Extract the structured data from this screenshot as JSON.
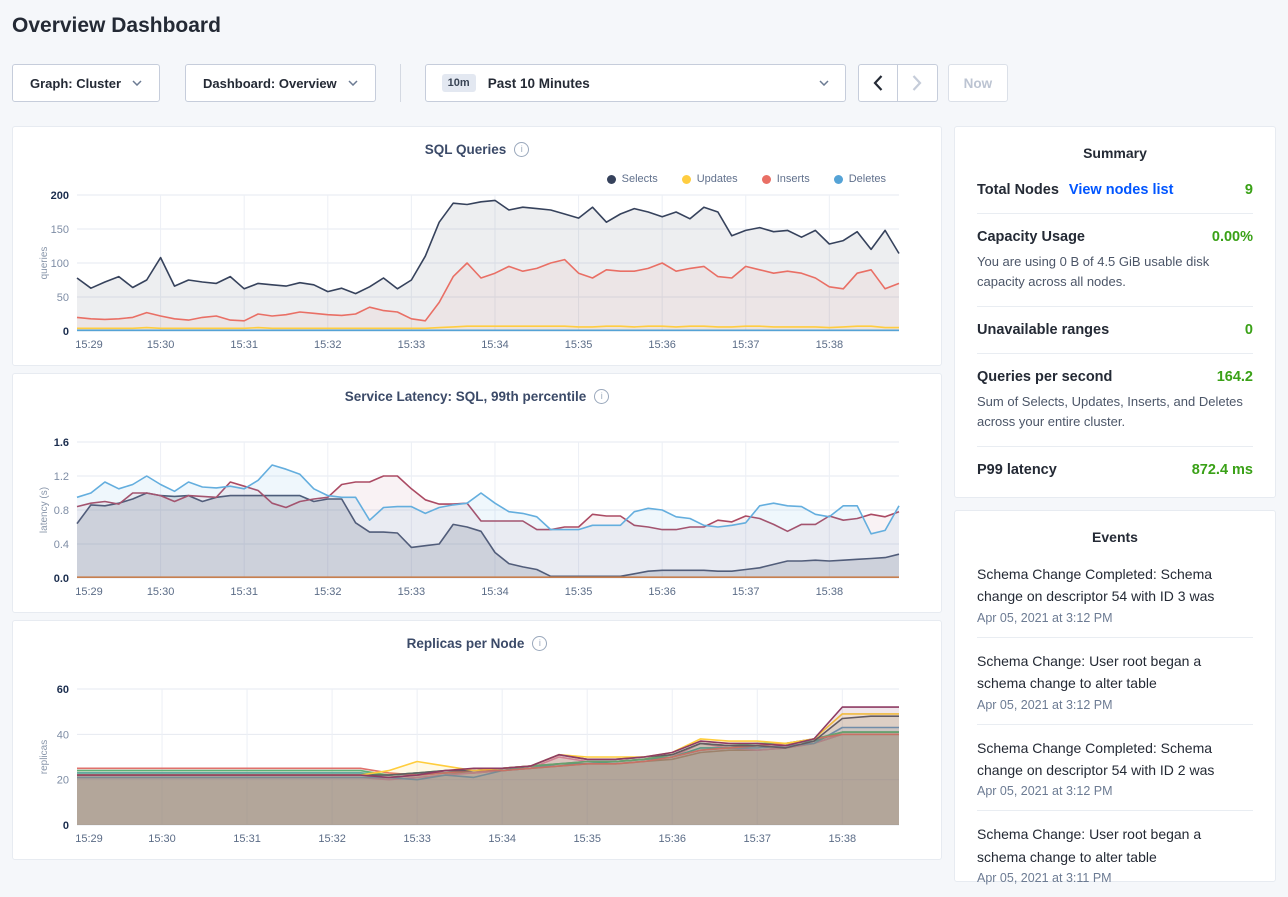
{
  "page": {
    "title": "Overview Dashboard"
  },
  "toolbar": {
    "graph_selector": "Graph: Cluster",
    "dashboard_selector": "Dashboard: Overview",
    "time_badge": "10m",
    "time_label": "Past 10 Minutes",
    "now_label": "Now"
  },
  "summary": {
    "header": "Summary",
    "total_nodes": {
      "label": "Total Nodes",
      "link": "View nodes list",
      "value": "9"
    },
    "capacity": {
      "label": "Capacity Usage",
      "value": "0.00%",
      "subtext": "You are using 0 B of 4.5 GiB usable disk capacity across all nodes."
    },
    "unavailable": {
      "label": "Unavailable ranges",
      "value": "0"
    },
    "qps": {
      "label": "Queries per second",
      "value": "164.2",
      "subtext": "Sum of Selects, Updates, Inserts, and Deletes across your entire cluster."
    },
    "p99": {
      "label": "P99 latency",
      "value": "872.4 ms"
    }
  },
  "events": {
    "header": "Events",
    "items": [
      {
        "message": "Schema Change Completed: Schema change on descriptor 54 with ID 3 was",
        "time": "Apr 05, 2021 at 3:12 PM"
      },
      {
        "message": "Schema Change: User root began a schema change to alter table",
        "time": "Apr 05, 2021 at 3:12 PM"
      },
      {
        "message": "Schema Change Completed: Schema change on descriptor 54 with ID 2 was",
        "time": "Apr 05, 2021 at 3:12 PM"
      },
      {
        "message": "Schema Change: User root began a schema change to alter table",
        "time": "Apr 05, 2021 at 3:11 PM"
      }
    ]
  },
  "colors": {
    "accent_green": "#3aa117",
    "link_blue": "#0055ff"
  },
  "chart_data": [
    {
      "type": "area",
      "title": "SQL Queries",
      "ylabel": "queries",
      "ylim": [
        0,
        200
      ],
      "yticks": [
        0,
        50,
        100,
        150,
        200
      ],
      "ytick_labels": [
        "0",
        "50",
        "100",
        "150",
        "200"
      ],
      "x_tick_labels": [
        "15:29",
        "15:30",
        "15:31",
        "15:32",
        "15:33",
        "15:34",
        "15:35",
        "15:36",
        "15:37",
        "15:38"
      ],
      "points_per_label": 6,
      "legend": true,
      "series": [
        {
          "name": "Selects",
          "color": "#36425c",
          "fill_opacity": 0.09,
          "values": [
            78,
            63,
            72,
            80,
            64,
            75,
            108,
            66,
            75,
            72,
            70,
            80,
            62,
            70,
            68,
            66,
            71,
            68,
            58,
            63,
            55,
            65,
            78,
            62,
            75,
            110,
            160,
            188,
            186,
            190,
            192,
            178,
            182,
            180,
            178,
            172,
            166,
            182,
            160,
            172,
            180,
            175,
            168,
            175,
            165,
            182,
            175,
            140,
            148,
            152,
            146,
            148,
            138,
            148,
            128,
            133,
            146,
            120,
            148,
            114
          ]
        },
        {
          "name": "Inserts",
          "color": "#e96f65",
          "fill_opacity": 0.07,
          "values": [
            20,
            18,
            17,
            18,
            20,
            27,
            22,
            18,
            16,
            20,
            22,
            16,
            15,
            25,
            22,
            24,
            28,
            26,
            24,
            23,
            25,
            35,
            30,
            28,
            18,
            15,
            42,
            80,
            100,
            78,
            85,
            95,
            88,
            92,
            100,
            105,
            85,
            78,
            90,
            88,
            88,
            92,
            100,
            88,
            92,
            95,
            80,
            78,
            95,
            90,
            85,
            88,
            85,
            78,
            65,
            62,
            85,
            90,
            62,
            70
          ]
        },
        {
          "name": "Updates",
          "color": "#ffcd40",
          "fill_opacity": 0.06,
          "values": [
            4,
            4,
            4,
            4,
            4,
            5,
            4,
            4,
            4,
            4,
            4,
            4,
            4,
            5,
            4,
            4,
            4,
            4,
            4,
            4,
            4,
            4,
            4,
            4,
            4,
            4,
            5,
            6,
            7,
            7,
            7,
            7,
            7,
            7,
            7,
            7,
            6,
            6,
            7,
            7,
            6,
            7,
            7,
            6,
            7,
            7,
            6,
            6,
            7,
            7,
            6,
            6,
            6,
            6,
            5,
            6,
            7,
            7,
            5,
            5
          ]
        },
        {
          "name": "Deletes",
          "color": "#55a3d6",
          "fill_opacity": 0.05,
          "values": [
            1,
            1,
            1,
            1,
            1,
            1,
            1,
            1,
            1,
            1,
            1,
            1,
            1,
            1,
            1,
            1,
            1,
            1,
            1,
            1,
            1,
            1,
            1,
            1,
            1,
            1,
            1,
            1,
            1,
            1,
            1,
            1,
            1,
            1,
            1,
            1,
            1,
            1,
            1,
            1,
            1,
            1,
            1,
            1,
            1,
            1,
            1,
            1,
            1,
            1,
            1,
            1,
            1,
            1,
            1,
            1,
            1,
            1,
            1,
            1
          ]
        }
      ],
      "legend_order": [
        "Selects",
        "Updates",
        "Inserts",
        "Deletes"
      ]
    },
    {
      "type": "area",
      "title": "Service Latency: SQL, 99th percentile",
      "ylabel": "latency (s)",
      "ylim": [
        0,
        1.6
      ],
      "yticks": [
        0,
        0.4,
        0.8,
        1.2,
        1.6
      ],
      "ytick_labels": [
        "0.0",
        "0.4",
        "0.8",
        "1.2",
        "1.6"
      ],
      "x_tick_labels": [
        "15:29",
        "15:30",
        "15:31",
        "15:32",
        "15:33",
        "15:34",
        "15:35",
        "15:36",
        "15:37",
        "15:38"
      ],
      "points_per_label": 6,
      "legend": false,
      "series": [
        {
          "color": "#4a5570",
          "fill_opacity": 0.18,
          "values": [
            0.64,
            0.86,
            0.85,
            0.88,
            0.93,
            1.0,
            0.97,
            0.96,
            0.97,
            0.9,
            0.95,
            0.97,
            0.97,
            0.97,
            0.97,
            0.97,
            0.97,
            0.9,
            0.93,
            0.93,
            0.65,
            0.54,
            0.54,
            0.53,
            0.36,
            0.38,
            0.4,
            0.63,
            0.6,
            0.55,
            0.3,
            0.17,
            0.13,
            0.1,
            0.02,
            0.02,
            0.02,
            0.02,
            0.02,
            0.02,
            0.05,
            0.08,
            0.09,
            0.09,
            0.09,
            0.09,
            0.08,
            0.08,
            0.1,
            0.12,
            0.16,
            0.2,
            0.2,
            0.21,
            0.2,
            0.21,
            0.22,
            0.23,
            0.24,
            0.28
          ]
        },
        {
          "color": "#ab4a63",
          "fill_opacity": 0.07,
          "values": [
            0.84,
            0.88,
            0.9,
            0.87,
            1.0,
            1.0,
            0.97,
            0.9,
            0.97,
            0.96,
            0.95,
            1.13,
            1.08,
            1.03,
            0.88,
            0.83,
            0.9,
            0.93,
            0.95,
            1.1,
            1.13,
            1.13,
            1.2,
            1.2,
            1.05,
            0.92,
            0.87,
            0.87,
            0.88,
            0.67,
            0.67,
            0.67,
            0.67,
            0.57,
            0.57,
            0.6,
            0.6,
            0.75,
            0.73,
            0.73,
            0.62,
            0.6,
            0.57,
            0.57,
            0.6,
            0.6,
            0.68,
            0.66,
            0.73,
            0.7,
            0.63,
            0.55,
            0.63,
            0.63,
            0.73,
            0.68,
            0.7,
            0.75,
            0.72,
            0.78
          ]
        },
        {
          "color": "#64aede",
          "fill_opacity": 0.1,
          "values": [
            0.95,
            1.0,
            1.13,
            1.05,
            1.1,
            1.2,
            1.1,
            1.02,
            1.13,
            1.07,
            1.06,
            1.08,
            1.05,
            1.15,
            1.33,
            1.28,
            1.22,
            1.05,
            0.97,
            0.95,
            0.95,
            0.68,
            0.83,
            0.84,
            0.84,
            0.76,
            0.83,
            0.86,
            0.88,
            1.0,
            0.88,
            0.78,
            0.76,
            0.72,
            0.57,
            0.57,
            0.57,
            0.62,
            0.62,
            0.62,
            0.78,
            0.82,
            0.8,
            0.72,
            0.7,
            0.62,
            0.6,
            0.62,
            0.65,
            0.85,
            0.88,
            0.85,
            0.84,
            0.75,
            0.72,
            0.85,
            0.85,
            0.52,
            0.56,
            0.85
          ]
        },
        {
          "color": "#c77f4f",
          "fill_opacity": 0,
          "values": [
            0.01,
            0.01,
            0.01,
            0.01,
            0.01,
            0.01,
            0.01,
            0.01,
            0.01,
            0.01,
            0.01,
            0.01,
            0.01,
            0.01,
            0.01,
            0.01,
            0.01,
            0.01,
            0.01,
            0.01,
            0.01,
            0.01,
            0.01,
            0.01,
            0.01,
            0.01,
            0.01,
            0.01,
            0.01,
            0.01,
            0.01,
            0.01,
            0.01,
            0.01,
            0.01,
            0.01,
            0.01,
            0.01,
            0.01,
            0.01,
            0.01,
            0.01,
            0.01,
            0.01,
            0.01,
            0.01,
            0.01,
            0.01,
            0.01,
            0.01,
            0.01,
            0.01,
            0.01,
            0.01,
            0.01,
            0.01,
            0.01,
            0.01,
            0.01,
            0.01
          ]
        }
      ]
    },
    {
      "type": "area",
      "title": "Replicas per Node",
      "ylabel": "replicas",
      "ylim": [
        0,
        60
      ],
      "yticks": [
        0,
        20,
        40,
        60
      ],
      "ytick_labels": [
        "0",
        "20",
        "40",
        "60"
      ],
      "x_tick_labels": [
        "15:29",
        "15:30",
        "15:31",
        "15:32",
        "15:33",
        "15:34",
        "15:35",
        "15:36",
        "15:37",
        "15:38"
      ],
      "points_per_label": 3,
      "legend": false,
      "series": [
        {
          "color": "#b5835a",
          "fill_opacity": 0.13,
          "values": [
            21,
            21,
            21,
            21,
            21,
            21,
            21,
            21,
            21,
            21,
            21,
            21,
            22,
            23,
            23,
            24,
            25,
            26,
            27,
            27,
            28,
            29,
            32,
            33,
            33,
            34,
            36,
            40,
            40,
            40
          ]
        },
        {
          "color": "#ef87b2",
          "fill_opacity": 0.13,
          "values": [
            21,
            21,
            21,
            21,
            21,
            21,
            21,
            21,
            21,
            21,
            21,
            20,
            21,
            22,
            23,
            24,
            25,
            30,
            28,
            28,
            29,
            30,
            36,
            34,
            33,
            34,
            36,
            40,
            40,
            40
          ]
        },
        {
          "color": "#5c9bd5",
          "fill_opacity": 0.13,
          "values": [
            21,
            21,
            21,
            21,
            21,
            21,
            21,
            21,
            21,
            21,
            21,
            21,
            20,
            22,
            21,
            24,
            25,
            27,
            28,
            28,
            29,
            30,
            33,
            34,
            34,
            35,
            36,
            43,
            43,
            43
          ]
        },
        {
          "color": "#3aa8a0",
          "fill_opacity": 0.13,
          "values": [
            23,
            23,
            23,
            23,
            23,
            23,
            23,
            23,
            23,
            23,
            23,
            22,
            23,
            23,
            24,
            24,
            26,
            27,
            27,
            28,
            29,
            30,
            34,
            34,
            35,
            36,
            37,
            41,
            41,
            41
          ]
        },
        {
          "color": "#4dba78",
          "fill_opacity": 0.13,
          "values": [
            24,
            24,
            24,
            24,
            24,
            24,
            24,
            24,
            24,
            24,
            24,
            22,
            23,
            24,
            24,
            25,
            26,
            27,
            28,
            28,
            29,
            31,
            36,
            35,
            36,
            36,
            38,
            41,
            41,
            41
          ]
        },
        {
          "color": "#e0716c",
          "fill_opacity": 0.13,
          "values": [
            25,
            25,
            25,
            25,
            25,
            25,
            25,
            25,
            25,
            25,
            25,
            23,
            22,
            23,
            24,
            24,
            25,
            26,
            27,
            27,
            28,
            30,
            33,
            34,
            35,
            36,
            38,
            40,
            40,
            40
          ]
        },
        {
          "color": "#475068",
          "fill_opacity": 0.13,
          "values": [
            22,
            22,
            22,
            22,
            22,
            22,
            22,
            22,
            22,
            22,
            22,
            22,
            23,
            24,
            24,
            25,
            26,
            31,
            29,
            29,
            30,
            31,
            36,
            35,
            35,
            34,
            37,
            47,
            48,
            48
          ]
        },
        {
          "color": "#ffcd3c",
          "fill_opacity": 0.13,
          "values": [
            22,
            22,
            22,
            22,
            22,
            22,
            22,
            22,
            22,
            22,
            22,
            24,
            28,
            26,
            24,
            25,
            26,
            31,
            30,
            30,
            30,
            32,
            38,
            37,
            37,
            36,
            38,
            49,
            49,
            49
          ]
        },
        {
          "color": "#8e3b64",
          "fill_opacity": 0.13,
          "values": [
            22,
            22,
            22,
            22,
            22,
            22,
            22,
            22,
            22,
            22,
            22,
            21,
            22,
            24,
            25,
            25,
            26,
            31,
            29,
            29,
            30,
            32,
            37,
            36,
            36,
            35,
            38,
            52,
            52,
            52
          ]
        }
      ]
    }
  ]
}
